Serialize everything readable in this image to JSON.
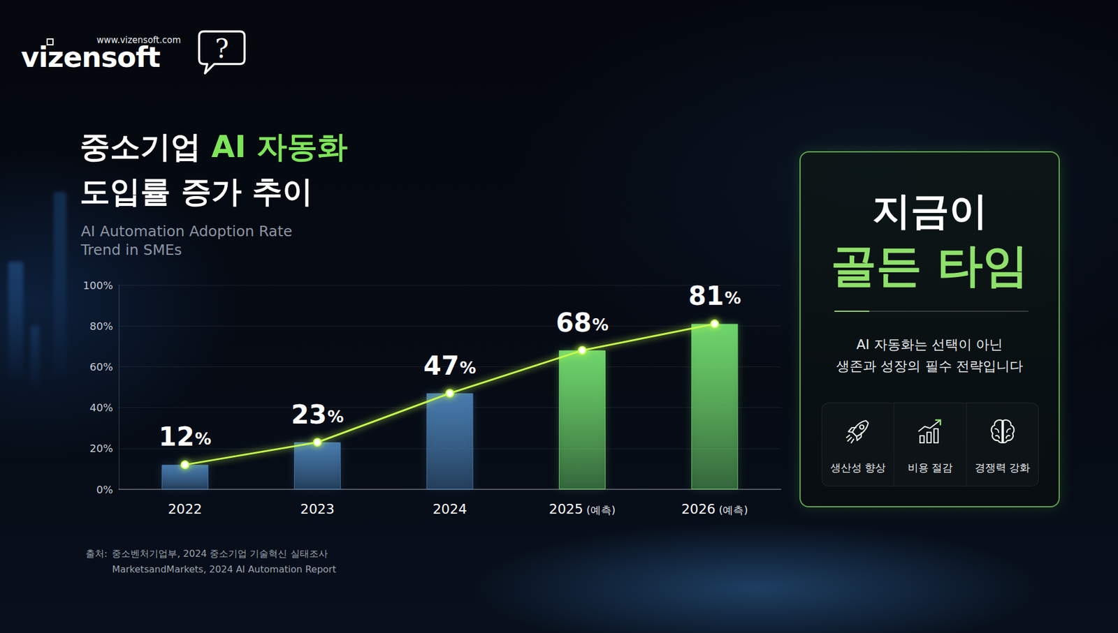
{
  "logo": {
    "name": "vizensoft",
    "url": "www.vizensoft.com",
    "icon": "?"
  },
  "header": {
    "title_lines": [
      "중소기업 AI 자동화",
      "도입률 증가 추이"
    ],
    "highlight": "AI 자동화",
    "subtitle_lines": [
      "AI Automation Adoption Rate",
      "Trend in SMEs"
    ]
  },
  "chart_data": {
    "type": "bar",
    "categories": [
      "2022",
      "2023",
      "2024",
      "2025 (예측)",
      "2026 (예측)"
    ],
    "series": [
      {
        "type": "bar",
        "values": [
          12,
          23,
          47,
          68,
          81
        ],
        "value_labels": [
          "12%",
          "23%",
          "47%",
          "68%",
          "81%"
        ],
        "colors": [
          "#4a7fb3",
          "#4a7fb3",
          "#4a7fb3",
          "#72dc6e",
          "#72dc6e"
        ]
      },
      {
        "type": "line",
        "values": [
          12,
          23,
          47,
          68,
          81
        ],
        "color": "#c8ff4e",
        "marker": "circle"
      }
    ],
    "ylim": [
      0,
      100
    ],
    "yticks": [
      {
        "value": 0,
        "label": "0%"
      },
      {
        "value": 20,
        "label": "20%"
      },
      {
        "value": 40,
        "label": "40%"
      },
      {
        "value": 60,
        "label": "60%"
      },
      {
        "value": 80,
        "label": "80%"
      },
      {
        "value": 100,
        "label": "100%"
      }
    ],
    "grid": true,
    "data_labels": true
  },
  "source": {
    "label": "출처:",
    "lines": [
      "중소벤처기업부, 2024 중소기업 기술혁신 실태조사",
      "MarketsandMarkets, 2024 AI Automation Report"
    ]
  },
  "panel": {
    "title_lines": [
      "지금이",
      "골든 타임"
    ],
    "message_lines": [
      "AI 자동화는 선택이 아닌",
      "생존과 성장의 필수 전략입니다"
    ],
    "benefits": [
      "생산성 향상",
      "비용 절감",
      "경쟁력 강화"
    ]
  }
}
